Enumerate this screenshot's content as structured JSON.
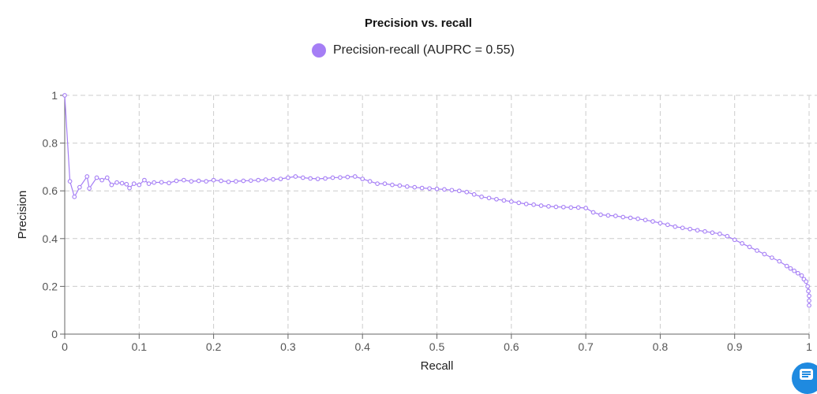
{
  "chart_data": {
    "type": "line",
    "title": "Precision vs. recall",
    "xlabel": "Recall",
    "ylabel": "Precision",
    "xlim": [
      0,
      1
    ],
    "ylim": [
      0,
      1
    ],
    "x_ticks": [
      "0",
      "0.1",
      "0.2",
      "0.3",
      "0.4",
      "0.5",
      "0.6",
      "0.7",
      "0.8",
      "0.9",
      "1"
    ],
    "y_ticks": [
      "0",
      "0.2",
      "0.4",
      "0.6",
      "0.8",
      "1"
    ],
    "grid": true,
    "legend_position": "top-center",
    "series": [
      {
        "name": "Precision-recall (AUPRC = 0.55)",
        "color": "#a57ef5",
        "marker": "hollow-circle",
        "x": [
          0,
          0.007,
          0.013,
          0.02,
          0.03,
          0.033,
          0.043,
          0.05,
          0.057,
          0.063,
          0.07,
          0.077,
          0.083,
          0.087,
          0.093,
          0.1,
          0.107,
          0.113,
          0.12,
          0.13,
          0.14,
          0.15,
          0.16,
          0.17,
          0.18,
          0.19,
          0.2,
          0.21,
          0.22,
          0.23,
          0.24,
          0.25,
          0.26,
          0.27,
          0.28,
          0.29,
          0.3,
          0.31,
          0.32,
          0.33,
          0.34,
          0.35,
          0.36,
          0.37,
          0.38,
          0.39,
          0.4,
          0.41,
          0.42,
          0.43,
          0.44,
          0.45,
          0.46,
          0.47,
          0.48,
          0.49,
          0.5,
          0.51,
          0.52,
          0.53,
          0.54,
          0.55,
          0.56,
          0.57,
          0.58,
          0.59,
          0.6,
          0.61,
          0.62,
          0.63,
          0.64,
          0.65,
          0.66,
          0.67,
          0.68,
          0.69,
          0.7,
          0.71,
          0.72,
          0.73,
          0.74,
          0.75,
          0.76,
          0.77,
          0.78,
          0.79,
          0.8,
          0.81,
          0.82,
          0.83,
          0.84,
          0.85,
          0.86,
          0.87,
          0.88,
          0.89,
          0.9,
          0.91,
          0.92,
          0.93,
          0.94,
          0.95,
          0.96,
          0.97,
          0.975,
          0.98,
          0.985,
          0.99,
          0.993,
          0.996,
          0.998,
          0.999,
          1.0,
          1.0,
          1.0
        ],
        "y": [
          1.0,
          0.64,
          0.575,
          0.615,
          0.66,
          0.61,
          0.655,
          0.645,
          0.655,
          0.625,
          0.635,
          0.632,
          0.628,
          0.612,
          0.63,
          0.625,
          0.645,
          0.63,
          0.635,
          0.636,
          0.633,
          0.642,
          0.645,
          0.64,
          0.642,
          0.64,
          0.645,
          0.642,
          0.638,
          0.64,
          0.642,
          0.643,
          0.645,
          0.647,
          0.648,
          0.65,
          0.655,
          0.66,
          0.655,
          0.652,
          0.65,
          0.652,
          0.655,
          0.656,
          0.658,
          0.66,
          0.65,
          0.64,
          0.63,
          0.63,
          0.625,
          0.622,
          0.618,
          0.615,
          0.612,
          0.61,
          0.608,
          0.606,
          0.603,
          0.6,
          0.595,
          0.585,
          0.575,
          0.57,
          0.565,
          0.56,
          0.555,
          0.55,
          0.545,
          0.542,
          0.538,
          0.535,
          0.533,
          0.532,
          0.53,
          0.53,
          0.528,
          0.51,
          0.5,
          0.497,
          0.495,
          0.49,
          0.487,
          0.483,
          0.478,
          0.472,
          0.465,
          0.458,
          0.45,
          0.445,
          0.44,
          0.435,
          0.43,
          0.425,
          0.42,
          0.41,
          0.395,
          0.38,
          0.365,
          0.35,
          0.335,
          0.32,
          0.305,
          0.285,
          0.275,
          0.265,
          0.255,
          0.245,
          0.23,
          0.22,
          0.2,
          0.18,
          0.16,
          0.14,
          0.12
        ]
      }
    ]
  },
  "chat_button": {
    "icon": "chat-icon",
    "color": "#1f8ae0"
  }
}
